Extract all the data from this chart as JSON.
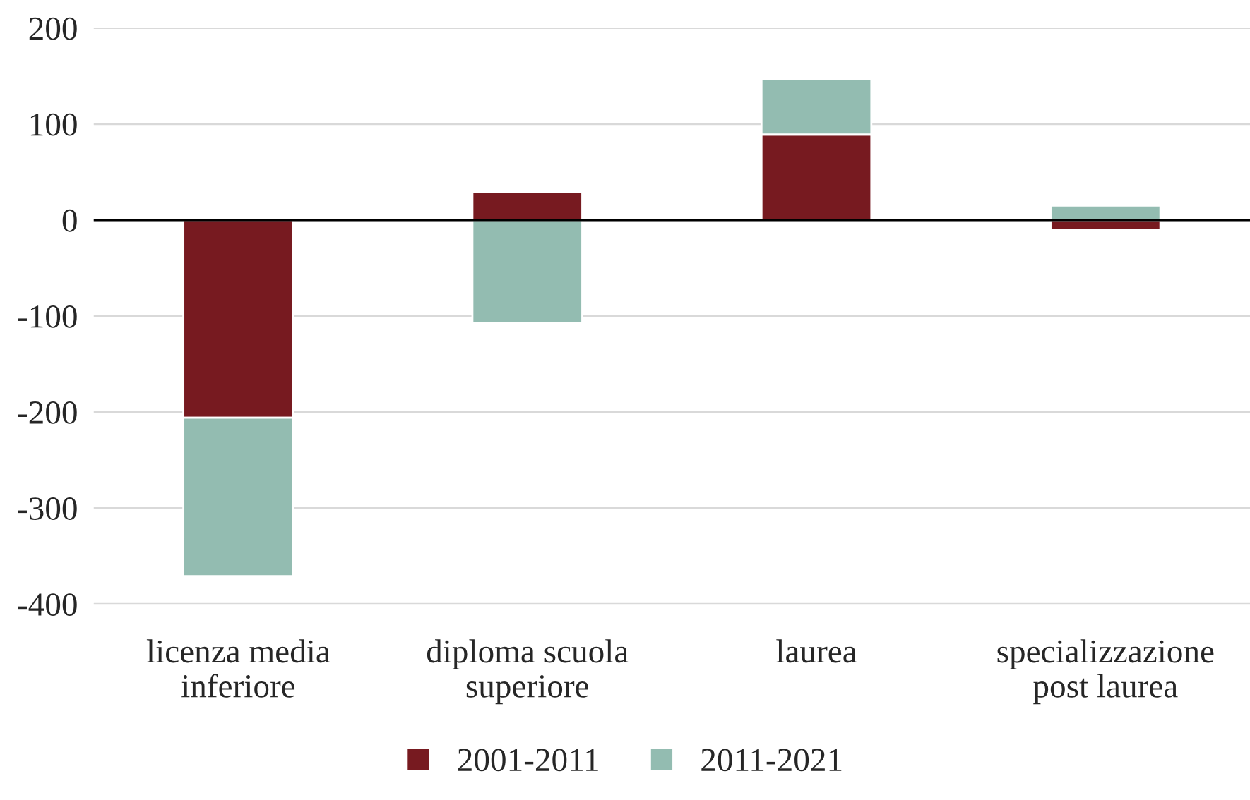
{
  "chart_data": {
    "type": "bar",
    "stacked": true,
    "categories": [
      "licenza media\ninferiore",
      "diploma scuola\nsuperiore",
      "laurea",
      "specializzazione\npost laurea"
    ],
    "series": [
      {
        "name": "2001-2011",
        "color": "#771a20",
        "values": [
          -206,
          29,
          89,
          -10
        ]
      },
      {
        "name": "2011-2021",
        "color": "#93bcb1",
        "values": [
          -165,
          -107,
          58,
          15
        ]
      }
    ],
    "ylim": [
      -400,
      200
    ],
    "yticks": [
      -400,
      -300,
      -200,
      -100,
      0,
      100,
      200
    ],
    "grid": "y",
    "legend": "bottom"
  }
}
